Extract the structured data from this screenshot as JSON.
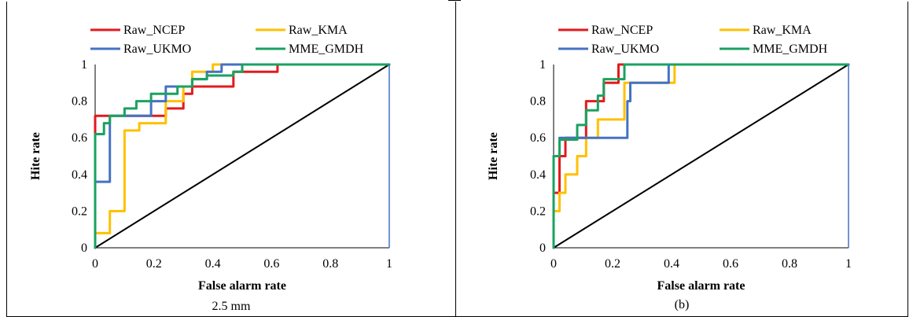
{
  "panels": [
    {
      "caption": "2.5 mm",
      "chart_data": {
        "type": "line",
        "xlabel": "False alarm rate",
        "ylabel": "Hite rate",
        "xlim": [
          0,
          1
        ],
        "ylim": [
          0,
          1
        ],
        "x_ticks": [
          "0",
          "0.2",
          "0.4",
          "0.6",
          "0.8",
          "1"
        ],
        "y_ticks": [
          "0",
          "0.2",
          "0.4",
          "0.6",
          "0.8",
          "1"
        ],
        "grid": false,
        "legend": "top",
        "series": [
          {
            "name": "Raw_NCEP",
            "color": "#e31a1c",
            "points": [
              [
                0,
                0
              ],
              [
                0,
                0.72
              ],
              [
                0.05,
                0.72
              ],
              [
                0.05,
                0.72
              ],
              [
                0.24,
                0.72
              ],
              [
                0.24,
                0.76
              ],
              [
                0.3,
                0.76
              ],
              [
                0.3,
                0.84
              ],
              [
                0.33,
                0.84
              ],
              [
                0.33,
                0.88
              ],
              [
                0.47,
                0.88
              ],
              [
                0.47,
                0.96
              ],
              [
                0.62,
                0.96
              ],
              [
                0.62,
                1
              ],
              [
                1,
                1
              ]
            ]
          },
          {
            "name": "Raw_KMA",
            "color": "#ffc000",
            "points": [
              [
                0,
                0
              ],
              [
                0,
                0.08
              ],
              [
                0.05,
                0.08
              ],
              [
                0.05,
                0.2
              ],
              [
                0.1,
                0.2
              ],
              [
                0.1,
                0.64
              ],
              [
                0.15,
                0.64
              ],
              [
                0.15,
                0.68
              ],
              [
                0.24,
                0.68
              ],
              [
                0.24,
                0.8
              ],
              [
                0.3,
                0.8
              ],
              [
                0.3,
                0.88
              ],
              [
                0.33,
                0.88
              ],
              [
                0.33,
                0.96
              ],
              [
                0.4,
                0.96
              ],
              [
                0.4,
                1
              ],
              [
                1,
                1
              ]
            ]
          },
          {
            "name": "Raw_UKMO",
            "color": "#4472c4",
            "points": [
              [
                0,
                0
              ],
              [
                0,
                0.36
              ],
              [
                0.05,
                0.36
              ],
              [
                0.05,
                0.72
              ],
              [
                0.19,
                0.72
              ],
              [
                0.19,
                0.8
              ],
              [
                0.24,
                0.8
              ],
              [
                0.24,
                0.88
              ],
              [
                0.33,
                0.88
              ],
              [
                0.33,
                0.92
              ],
              [
                0.38,
                0.92
              ],
              [
                0.38,
                0.96
              ],
              [
                0.43,
                0.96
              ],
              [
                0.43,
                1
              ],
              [
                1,
                1
              ]
            ]
          },
          {
            "name": "MME_GMDH",
            "color": "#1aa260",
            "points": [
              [
                0,
                0
              ],
              [
                0,
                0.62
              ],
              [
                0.03,
                0.62
              ],
              [
                0.03,
                0.68
              ],
              [
                0.05,
                0.68
              ],
              [
                0.05,
                0.72
              ],
              [
                0.1,
                0.72
              ],
              [
                0.1,
                0.76
              ],
              [
                0.14,
                0.76
              ],
              [
                0.14,
                0.8
              ],
              [
                0.19,
                0.8
              ],
              [
                0.19,
                0.84
              ],
              [
                0.28,
                0.84
              ],
              [
                0.28,
                0.88
              ],
              [
                0.33,
                0.88
              ],
              [
                0.33,
                0.92
              ],
              [
                0.38,
                0.92
              ],
              [
                0.38,
                0.94
              ],
              [
                0.47,
                0.94
              ],
              [
                0.47,
                0.96
              ],
              [
                0.5,
                0.96
              ],
              [
                0.5,
                1
              ],
              [
                1,
                1
              ]
            ]
          }
        ],
        "reference_line": [
          [
            0,
            0
          ],
          [
            1,
            1
          ]
        ]
      }
    },
    {
      "caption": "(b)",
      "chart_data": {
        "type": "line",
        "xlabel": "False alarm rate",
        "ylabel": "Hite rate",
        "xlim": [
          0,
          1
        ],
        "ylim": [
          0,
          1
        ],
        "x_ticks": [
          "0",
          "0.2",
          "0.4",
          "0.6",
          "0.8",
          "1"
        ],
        "y_ticks": [
          "0",
          "0.2",
          "0.4",
          "0.6",
          "0.8",
          "1"
        ],
        "grid": false,
        "legend": "top",
        "series": [
          {
            "name": "Raw_NCEP",
            "color": "#e31a1c",
            "points": [
              [
                0,
                0
              ],
              [
                0,
                0.3
              ],
              [
                0.02,
                0.3
              ],
              [
                0.02,
                0.5
              ],
              [
                0.04,
                0.5
              ],
              [
                0.04,
                0.6
              ],
              [
                0.08,
                0.6
              ],
              [
                0.08,
                0.6
              ],
              [
                0.11,
                0.6
              ],
              [
                0.11,
                0.8
              ],
              [
                0.15,
                0.8
              ],
              [
                0.15,
                0.8
              ],
              [
                0.17,
                0.8
              ],
              [
                0.17,
                0.9
              ],
              [
                0.22,
                0.9
              ],
              [
                0.22,
                1
              ],
              [
                1,
                1
              ]
            ]
          },
          {
            "name": "Raw_KMA",
            "color": "#ffc000",
            "points": [
              [
                0,
                0
              ],
              [
                0,
                0.2
              ],
              [
                0.02,
                0.2
              ],
              [
                0.02,
                0.3
              ],
              [
                0.04,
                0.3
              ],
              [
                0.04,
                0.4
              ],
              [
                0.08,
                0.4
              ],
              [
                0.08,
                0.5
              ],
              [
                0.11,
                0.5
              ],
              [
                0.11,
                0.6
              ],
              [
                0.15,
                0.6
              ],
              [
                0.15,
                0.7
              ],
              [
                0.24,
                0.7
              ],
              [
                0.24,
                0.9
              ],
              [
                0.39,
                0.9
              ],
              [
                0.39,
                0.9
              ],
              [
                0.41,
                0.9
              ],
              [
                0.41,
                1
              ],
              [
                1,
                1
              ]
            ]
          },
          {
            "name": "Raw_UKMO",
            "color": "#4472c4",
            "points": [
              [
                0,
                0
              ],
              [
                0,
                0.5
              ],
              [
                0.02,
                0.5
              ],
              [
                0.02,
                0.6
              ],
              [
                0.15,
                0.6
              ],
              [
                0.15,
                0.6
              ],
              [
                0.25,
                0.6
              ],
              [
                0.25,
                0.8
              ],
              [
                0.26,
                0.8
              ],
              [
                0.26,
                0.9
              ],
              [
                0.39,
                0.9
              ],
              [
                0.39,
                1
              ],
              [
                1,
                1
              ]
            ]
          },
          {
            "name": "MME_GMDH",
            "color": "#1aa260",
            "points": [
              [
                0,
                0
              ],
              [
                0,
                0.5
              ],
              [
                0.02,
                0.5
              ],
              [
                0.02,
                0.59
              ],
              [
                0.08,
                0.59
              ],
              [
                0.08,
                0.67
              ],
              [
                0.11,
                0.67
              ],
              [
                0.11,
                0.75
              ],
              [
                0.15,
                0.75
              ],
              [
                0.15,
                0.83
              ],
              [
                0.17,
                0.83
              ],
              [
                0.17,
                0.92
              ],
              [
                0.24,
                0.92
              ],
              [
                0.24,
                1
              ],
              [
                1,
                1
              ]
            ]
          }
        ],
        "reference_line": [
          [
            0,
            0
          ],
          [
            1,
            1
          ]
        ]
      }
    }
  ]
}
